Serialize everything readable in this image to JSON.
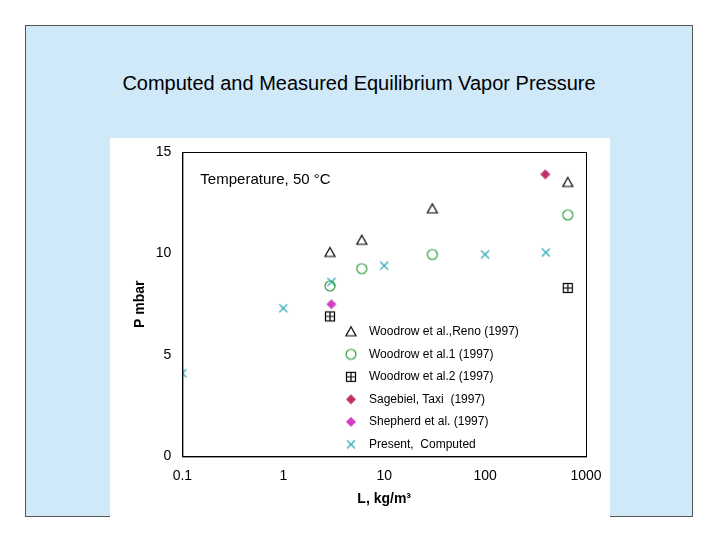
{
  "chart_data": {
    "type": "scatter",
    "title": "Computed and Measured Equilibrium Vapor Pressure",
    "annotation": "Temperature, 50 °C",
    "x_label": "L, kg/m³",
    "y_label": "P mbar",
    "log": "x",
    "grid": false,
    "legend": "lower right",
    "xlim": [
      0.1,
      1000
    ],
    "xticks": [
      0.1,
      1,
      10,
      100,
      1000
    ],
    "ylim": [
      0,
      15
    ],
    "yticks": [
      0,
      5,
      10,
      15
    ],
    "series": [
      {
        "name": "Woodrow et al.,Reno (1997)",
        "color": "#000000",
        "marker": "triangle",
        "x": [
          2.9,
          6,
          30,
          660
        ],
        "values": [
          10.05,
          10.65,
          12.2,
          13.5
        ]
      },
      {
        "name": "Woodrow et al.1 (1997)",
        "color": "#2e9e3e",
        "marker": "circle",
        "x": [
          2.9,
          6,
          30,
          660
        ],
        "values": [
          8.4,
          9.25,
          9.95,
          11.9
        ]
      },
      {
        "name": "Woodrow et al.2 (1997)",
        "color": "#000000",
        "marker": "square_plus",
        "x": [
          2.9,
          660
        ],
        "values": [
          6.9,
          8.3
        ]
      },
      {
        "name": "Sagebiel, Taxi  (1997)",
        "color": "#c0306a",
        "marker": "diamond",
        "x": [
          395
        ],
        "values": [
          13.9
        ]
      },
      {
        "name": "Shepherd et al. (1997)",
        "color": "#d040c0",
        "marker": "diamond",
        "x": [
          3
        ],
        "values": [
          7.5
        ]
      },
      {
        "name": "Present,  Computed",
        "color": "#2aa8b8",
        "marker": "x",
        "x": [
          0.1,
          1,
          3,
          10,
          100,
          400
        ],
        "values": [
          4.1,
          7.3,
          8.6,
          9.4,
          9.95,
          10.05
        ]
      }
    ]
  }
}
